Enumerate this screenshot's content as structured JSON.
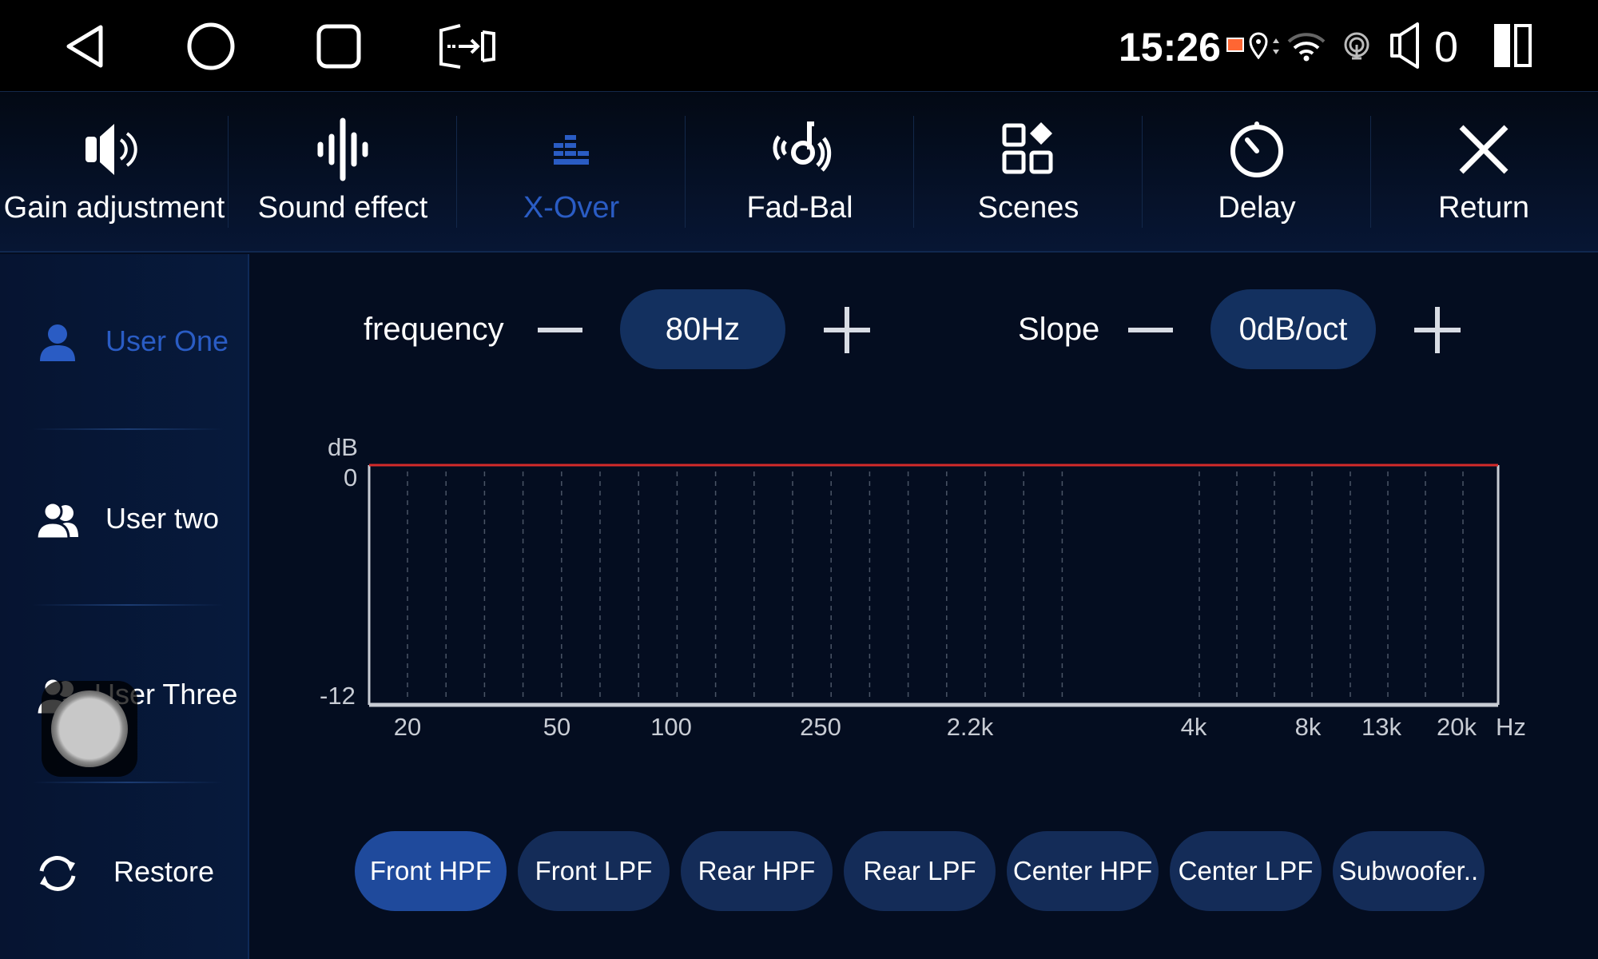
{
  "status_bar": {
    "nav_icons": [
      "back-icon",
      "home-icon",
      "recents-icon",
      "exit-split-icon"
    ],
    "time": "15:26",
    "volume": "0",
    "icons": [
      "cast-icon",
      "location-icon",
      "data-arrows-icon",
      "wifi-icon",
      "hotspot-icon",
      "speaker-icon",
      "split-screen-icon"
    ]
  },
  "top_nav": {
    "items": [
      {
        "label": "Gain adjustment",
        "icon": "speaker-volume-icon"
      },
      {
        "label": "Sound effect",
        "icon": "waveform-icon"
      },
      {
        "label": "X-Over",
        "icon": "crossover-bars-icon",
        "active": true
      },
      {
        "label": "Fad-Bal",
        "icon": "fader-balance-icon"
      },
      {
        "label": "Scenes",
        "icon": "scenes-grid-icon"
      },
      {
        "label": "Delay",
        "icon": "timer-icon"
      },
      {
        "label": "Return",
        "icon": "close-icon"
      }
    ],
    "active_color": "#2a5cc4"
  },
  "sidebar": {
    "items": [
      {
        "label": "User One",
        "icon": "user-icon",
        "active": true
      },
      {
        "label": "User two",
        "icon": "users-icon"
      },
      {
        "label": "User Three",
        "icon": "users-icon"
      },
      {
        "label": "Restore",
        "icon": "restore-icon"
      }
    ]
  },
  "controls": {
    "frequency_label": "frequency",
    "frequency_value": "80Hz",
    "slope_label": "Slope",
    "slope_value": "0dB/oct"
  },
  "chart_data": {
    "type": "line",
    "ylabel": "dB",
    "xunit": "Hz",
    "ylim": [
      -12,
      0
    ],
    "yticks": [
      "0",
      "-12"
    ],
    "xtick_labels": [
      "20",
      "50",
      "100",
      "250",
      "2.2k",
      "4k",
      "8k",
      "13k",
      "20k"
    ],
    "grid": "vertical dashed",
    "series": [
      {
        "values_db": [
          0,
          0
        ],
        "color": "#d42a2a"
      }
    ]
  },
  "filters": {
    "buttons": [
      "Front HPF",
      "Front LPF",
      "Rear HPF",
      "Rear LPF",
      "Center HPF",
      "Center LPF",
      "Subwoofer.."
    ],
    "active": "Front HPF"
  }
}
